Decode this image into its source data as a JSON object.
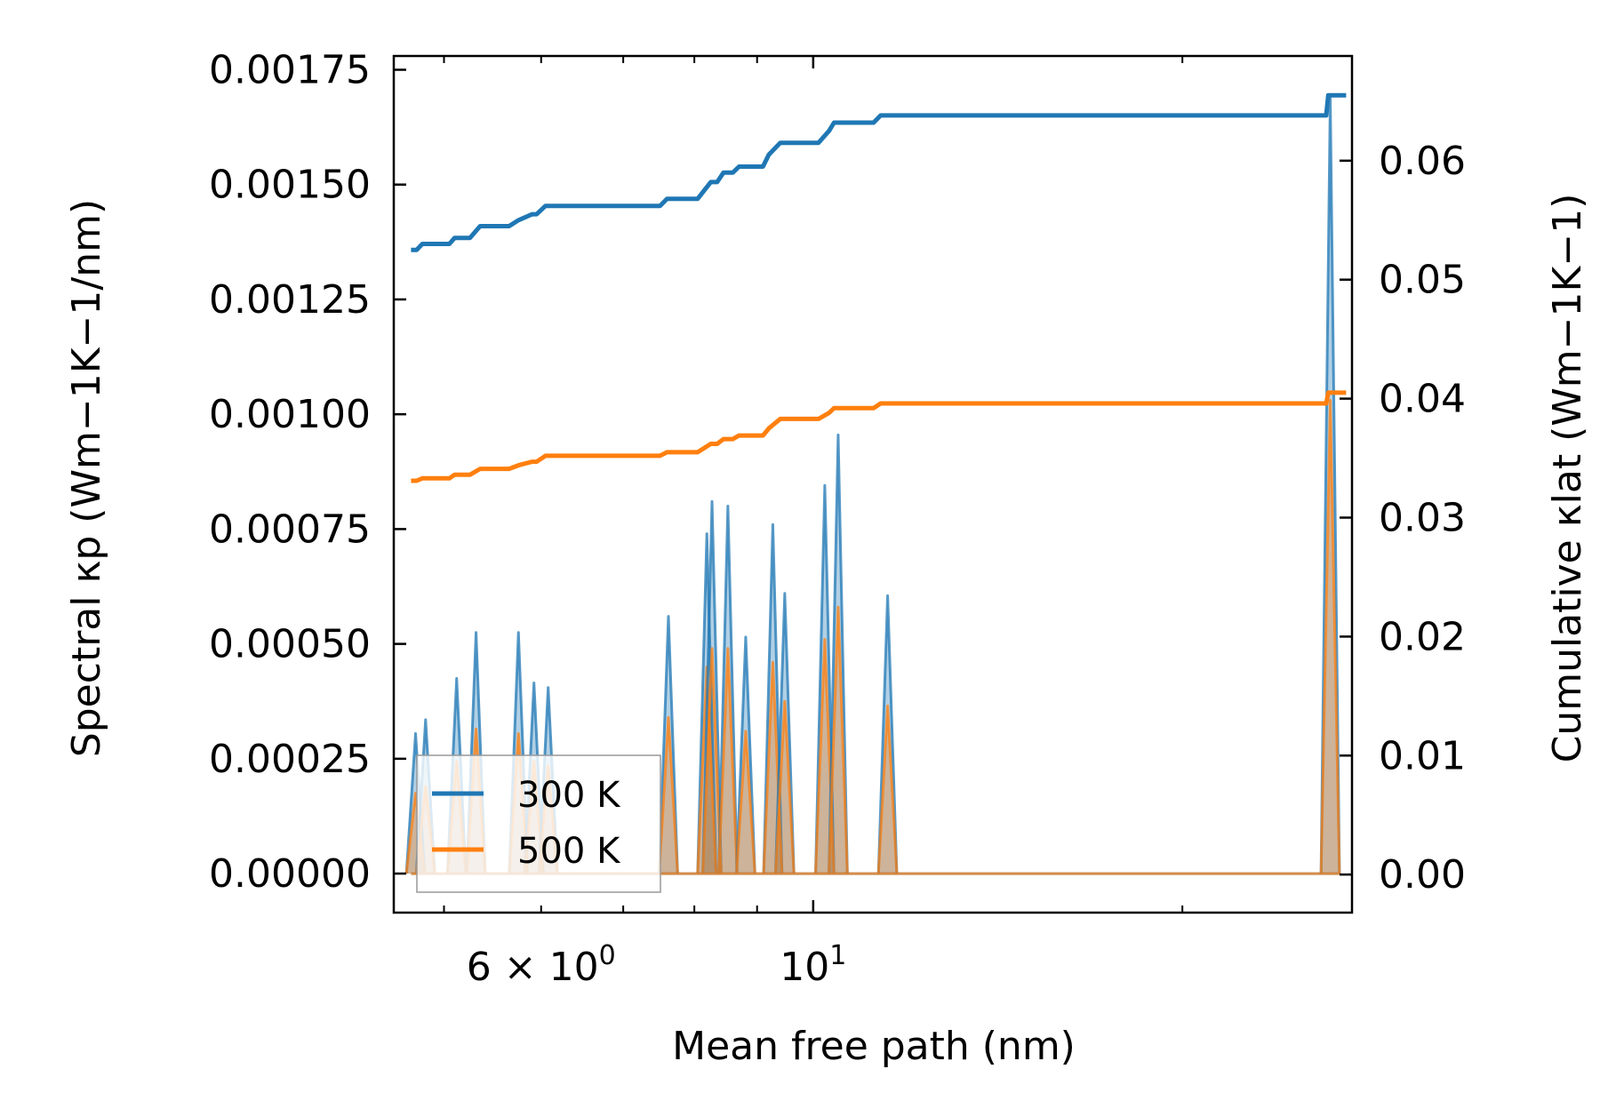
{
  "chart_data": {
    "type": "line",
    "xscale": "log",
    "xlabel": "Mean free path (nm)",
    "ylabel_left": "Spectral κp (Wm−1K−1/nm)",
    "ylabel_right": "Cumulative κlat (Wm−1K−1)",
    "xlim": [
      4.55,
      27.5
    ],
    "ylim_left": [
      -8.5e-05,
      0.00178
    ],
    "ylim_right": [
      -0.0032,
      0.0688
    ],
    "x_ticks": [
      {
        "value": 6,
        "label": "6 × 10",
        "sup": "0"
      },
      {
        "value": 10,
        "label": "10",
        "sup": "1"
      }
    ],
    "y_ticks_left": [
      0.0,
      0.00025,
      0.0005,
      0.00075,
      0.001,
      0.00125,
      0.0015,
      0.00175
    ],
    "y_tick_labels_left": [
      "0.00000",
      "0.00025",
      "0.00050",
      "0.00075",
      "0.00100",
      "0.00125",
      "0.00150",
      "0.00175"
    ],
    "y_ticks_right": [
      0.0,
      0.01,
      0.02,
      0.03,
      0.04,
      0.05,
      0.06
    ],
    "y_tick_labels_right": [
      "0.00",
      "0.01",
      "0.02",
      "0.03",
      "0.04",
      "0.05",
      "0.06"
    ],
    "legend": {
      "position": "lower-left",
      "entries": [
        "300 K",
        "500 K"
      ]
    },
    "spikes": [
      {
        "x": 4.74,
        "s300": 0.000305,
        "s500": 0.000175
      },
      {
        "x": 4.83,
        "s300": 0.000335,
        "s500": 0.00019
      },
      {
        "x": 5.12,
        "s300": 0.000425,
        "s500": 0.000245
      },
      {
        "x": 5.31,
        "s300": 0.000525,
        "s500": 0.000315
      },
      {
        "x": 5.75,
        "s300": 0.000525,
        "s500": 0.000305
      },
      {
        "x": 5.92,
        "s300": 0.000415,
        "s500": 0.000245
      },
      {
        "x": 6.08,
        "s300": 0.000405,
        "s500": 0.000235
      },
      {
        "x": 7.62,
        "s300": 0.00056,
        "s500": 0.00034
      },
      {
        "x": 8.19,
        "s300": 0.00074,
        "s500": 0.00045
      },
      {
        "x": 8.27,
        "s300": 0.00081,
        "s500": 0.00049
      },
      {
        "x": 8.52,
        "s300": 0.0008,
        "s500": 0.00049
      },
      {
        "x": 8.81,
        "s300": 0.000515,
        "s500": 0.00031
      },
      {
        "x": 9.27,
        "s300": 0.00076,
        "s500": 0.00046
      },
      {
        "x": 9.48,
        "s300": 0.00061,
        "s500": 0.000375
      },
      {
        "x": 10.22,
        "s300": 0.000845,
        "s500": 0.00051
      },
      {
        "x": 10.48,
        "s300": 0.000955,
        "s500": 0.00058
      },
      {
        "x": 11.5,
        "s300": 0.000605,
        "s500": 0.000365
      },
      {
        "x": 26.4,
        "s300": 0.00169,
        "s500": 0.00103
      }
    ],
    "series": [
      {
        "name": "300 K",
        "color": "#1f77b4",
        "cumulative": [
          [
            4.7,
            0.0525
          ],
          [
            4.75,
            0.0525
          ],
          [
            4.8,
            0.053
          ],
          [
            5.05,
            0.053
          ],
          [
            5.1,
            0.0535
          ],
          [
            5.25,
            0.0535
          ],
          [
            5.35,
            0.0545
          ],
          [
            5.65,
            0.0545
          ],
          [
            5.75,
            0.055
          ],
          [
            5.9,
            0.0555
          ],
          [
            5.95,
            0.0555
          ],
          [
            6.05,
            0.0562
          ],
          [
            7.5,
            0.0562
          ],
          [
            7.6,
            0.0568
          ],
          [
            8.05,
            0.0568
          ],
          [
            8.25,
            0.0582
          ],
          [
            8.35,
            0.0582
          ],
          [
            8.45,
            0.059
          ],
          [
            8.6,
            0.059
          ],
          [
            8.7,
            0.0595
          ],
          [
            9.1,
            0.0595
          ],
          [
            9.2,
            0.0605
          ],
          [
            9.4,
            0.0615
          ],
          [
            10.1,
            0.0615
          ],
          [
            10.3,
            0.0625
          ],
          [
            10.4,
            0.0632
          ],
          [
            11.2,
            0.0632
          ],
          [
            11.35,
            0.0638
          ],
          [
            26.2,
            0.0638
          ],
          [
            26.3,
            0.0655
          ],
          [
            27.2,
            0.0655
          ]
        ]
      },
      {
        "name": "500 K",
        "color": "#ff7f0e",
        "cumulative": [
          [
            4.7,
            0.0331
          ],
          [
            4.75,
            0.0331
          ],
          [
            4.8,
            0.0333
          ],
          [
            5.05,
            0.0333
          ],
          [
            5.1,
            0.0336
          ],
          [
            5.25,
            0.0336
          ],
          [
            5.35,
            0.0341
          ],
          [
            5.65,
            0.0341
          ],
          [
            5.75,
            0.0344
          ],
          [
            5.9,
            0.0347
          ],
          [
            5.95,
            0.0347
          ],
          [
            6.05,
            0.0352
          ],
          [
            7.5,
            0.0352
          ],
          [
            7.6,
            0.0355
          ],
          [
            8.05,
            0.0355
          ],
          [
            8.25,
            0.0362
          ],
          [
            8.35,
            0.0362
          ],
          [
            8.45,
            0.0366
          ],
          [
            8.6,
            0.0366
          ],
          [
            8.7,
            0.0369
          ],
          [
            9.1,
            0.0369
          ],
          [
            9.2,
            0.0375
          ],
          [
            9.4,
            0.0383
          ],
          [
            10.1,
            0.0383
          ],
          [
            10.3,
            0.0388
          ],
          [
            10.4,
            0.0392
          ],
          [
            11.2,
            0.0392
          ],
          [
            11.35,
            0.0396
          ],
          [
            26.2,
            0.0396
          ],
          [
            26.3,
            0.0405
          ],
          [
            27.2,
            0.0405
          ]
        ]
      }
    ]
  }
}
